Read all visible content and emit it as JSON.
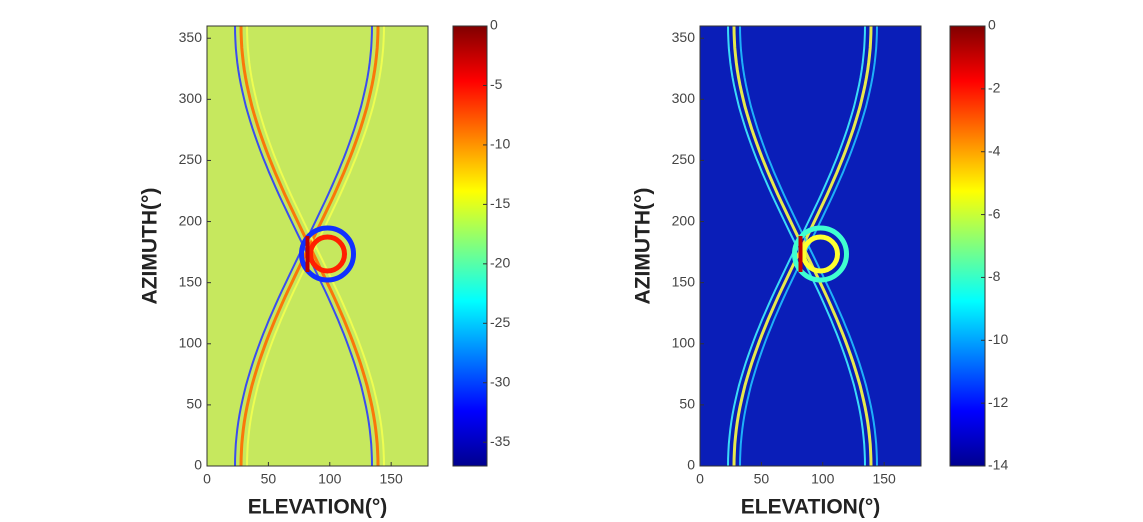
{
  "chart_data": [
    {
      "type": "heatmap",
      "xlabel": "ELEVATION(°)",
      "ylabel": "AZIMUTH(°)",
      "xlim": [
        0,
        180
      ],
      "xticks": [
        0,
        50,
        100,
        150
      ],
      "ylim": [
        0,
        360
      ],
      "yticks": [
        0,
        50,
        100,
        150,
        200,
        250,
        300,
        350
      ],
      "clim": [
        -37,
        0
      ],
      "cticks": [
        0,
        -5,
        -10,
        -15,
        -20,
        -25,
        -30,
        -35
      ],
      "colormap": "jet"
    },
    {
      "type": "heatmap",
      "xlabel": "ELEVATION(°)",
      "ylabel": "AZIMUTH(°)",
      "xlim": [
        0,
        180
      ],
      "xticks": [
        0,
        50,
        100,
        150
      ],
      "ylim": [
        0,
        360
      ],
      "yticks": [
        0,
        50,
        100,
        150,
        200,
        250,
        300,
        350
      ],
      "clim": [
        -14,
        0
      ],
      "cticks": [
        0,
        -2,
        -4,
        -6,
        -8,
        -10,
        -12,
        -14
      ],
      "colormap": "jet"
    }
  ]
}
